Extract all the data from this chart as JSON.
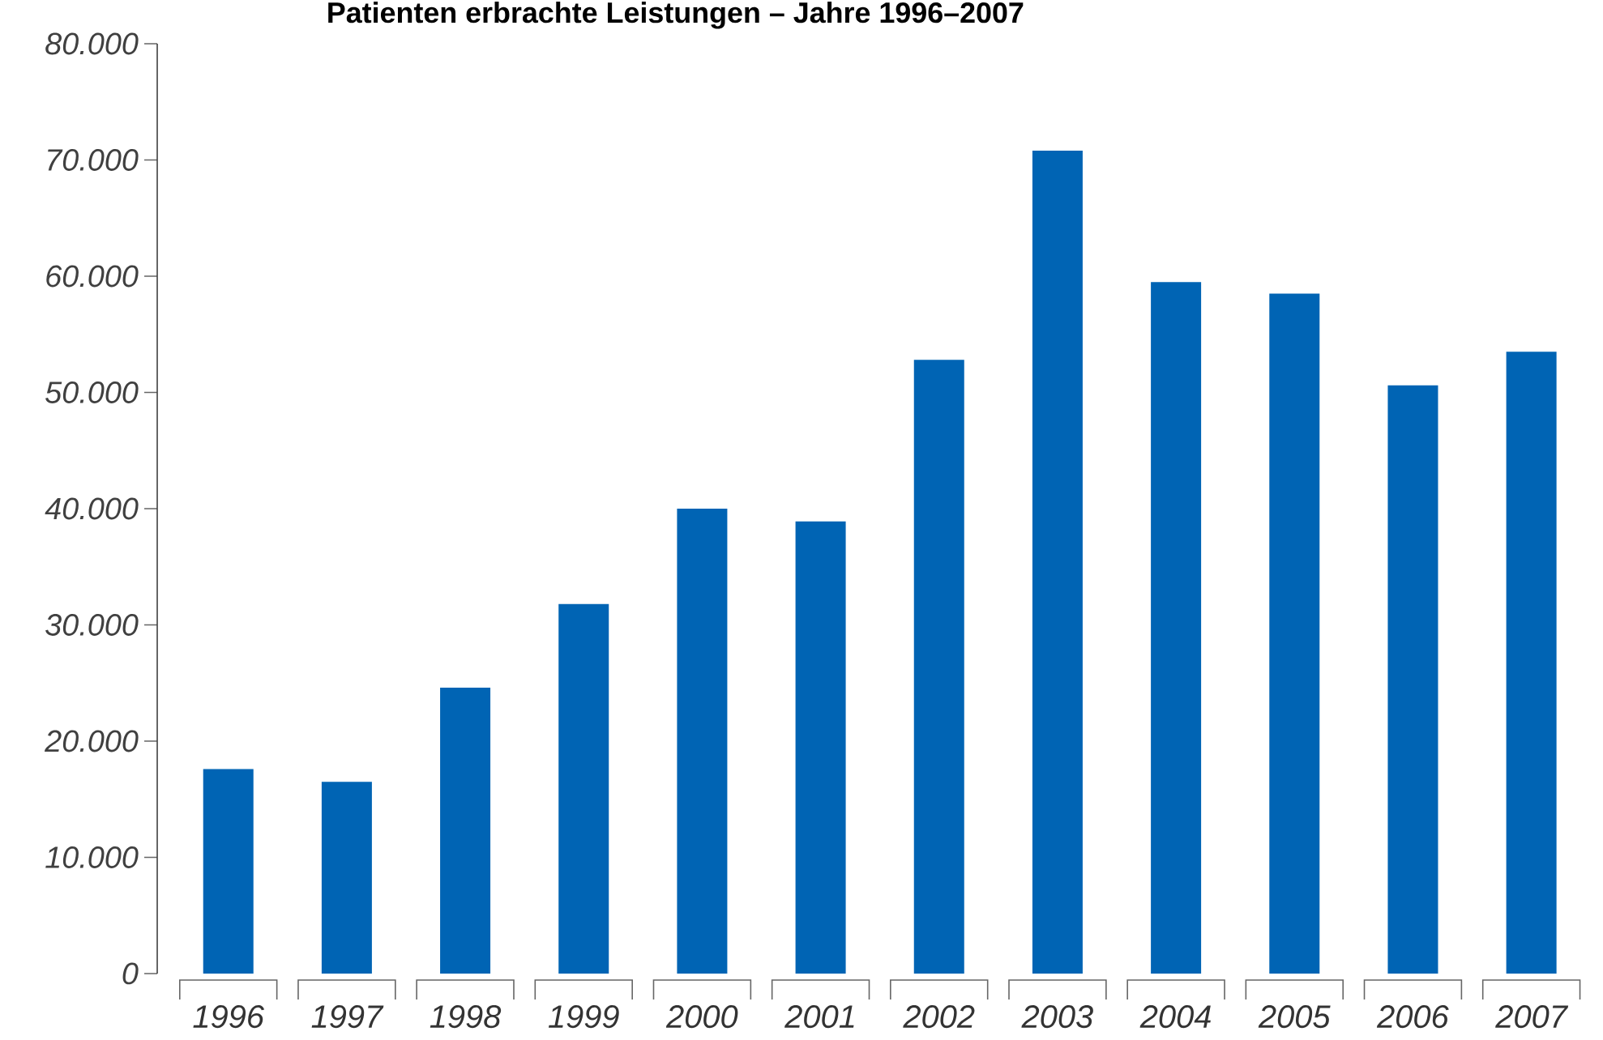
{
  "chart_data": {
    "type": "bar",
    "title": "Patienten erbrachte Leistungen – Jahre 1996–2007",
    "categories": [
      "1996",
      "1997",
      "1998",
      "1999",
      "2000",
      "2001",
      "2002",
      "2003",
      "2004",
      "2005",
      "2006",
      "2007"
    ],
    "values": [
      17600,
      16500,
      24600,
      31800,
      40000,
      38900,
      52800,
      70800,
      59500,
      58500,
      50600,
      53500
    ],
    "color": "#0064b4",
    "ylim": [
      0,
      80000
    ],
    "yticks": [
      {
        "value": 0,
        "label": "0"
      },
      {
        "value": 10000,
        "label": "10.000"
      },
      {
        "value": 20000,
        "label": "20.000"
      },
      {
        "value": 30000,
        "label": "30.000"
      },
      {
        "value": 40000,
        "label": "40.000"
      },
      {
        "value": 50000,
        "label": "50.000"
      },
      {
        "value": 60000,
        "label": "60.000"
      },
      {
        "value": 70000,
        "label": "70.000"
      },
      {
        "value": 80000,
        "label": "80.000"
      }
    ],
    "grid": false
  }
}
